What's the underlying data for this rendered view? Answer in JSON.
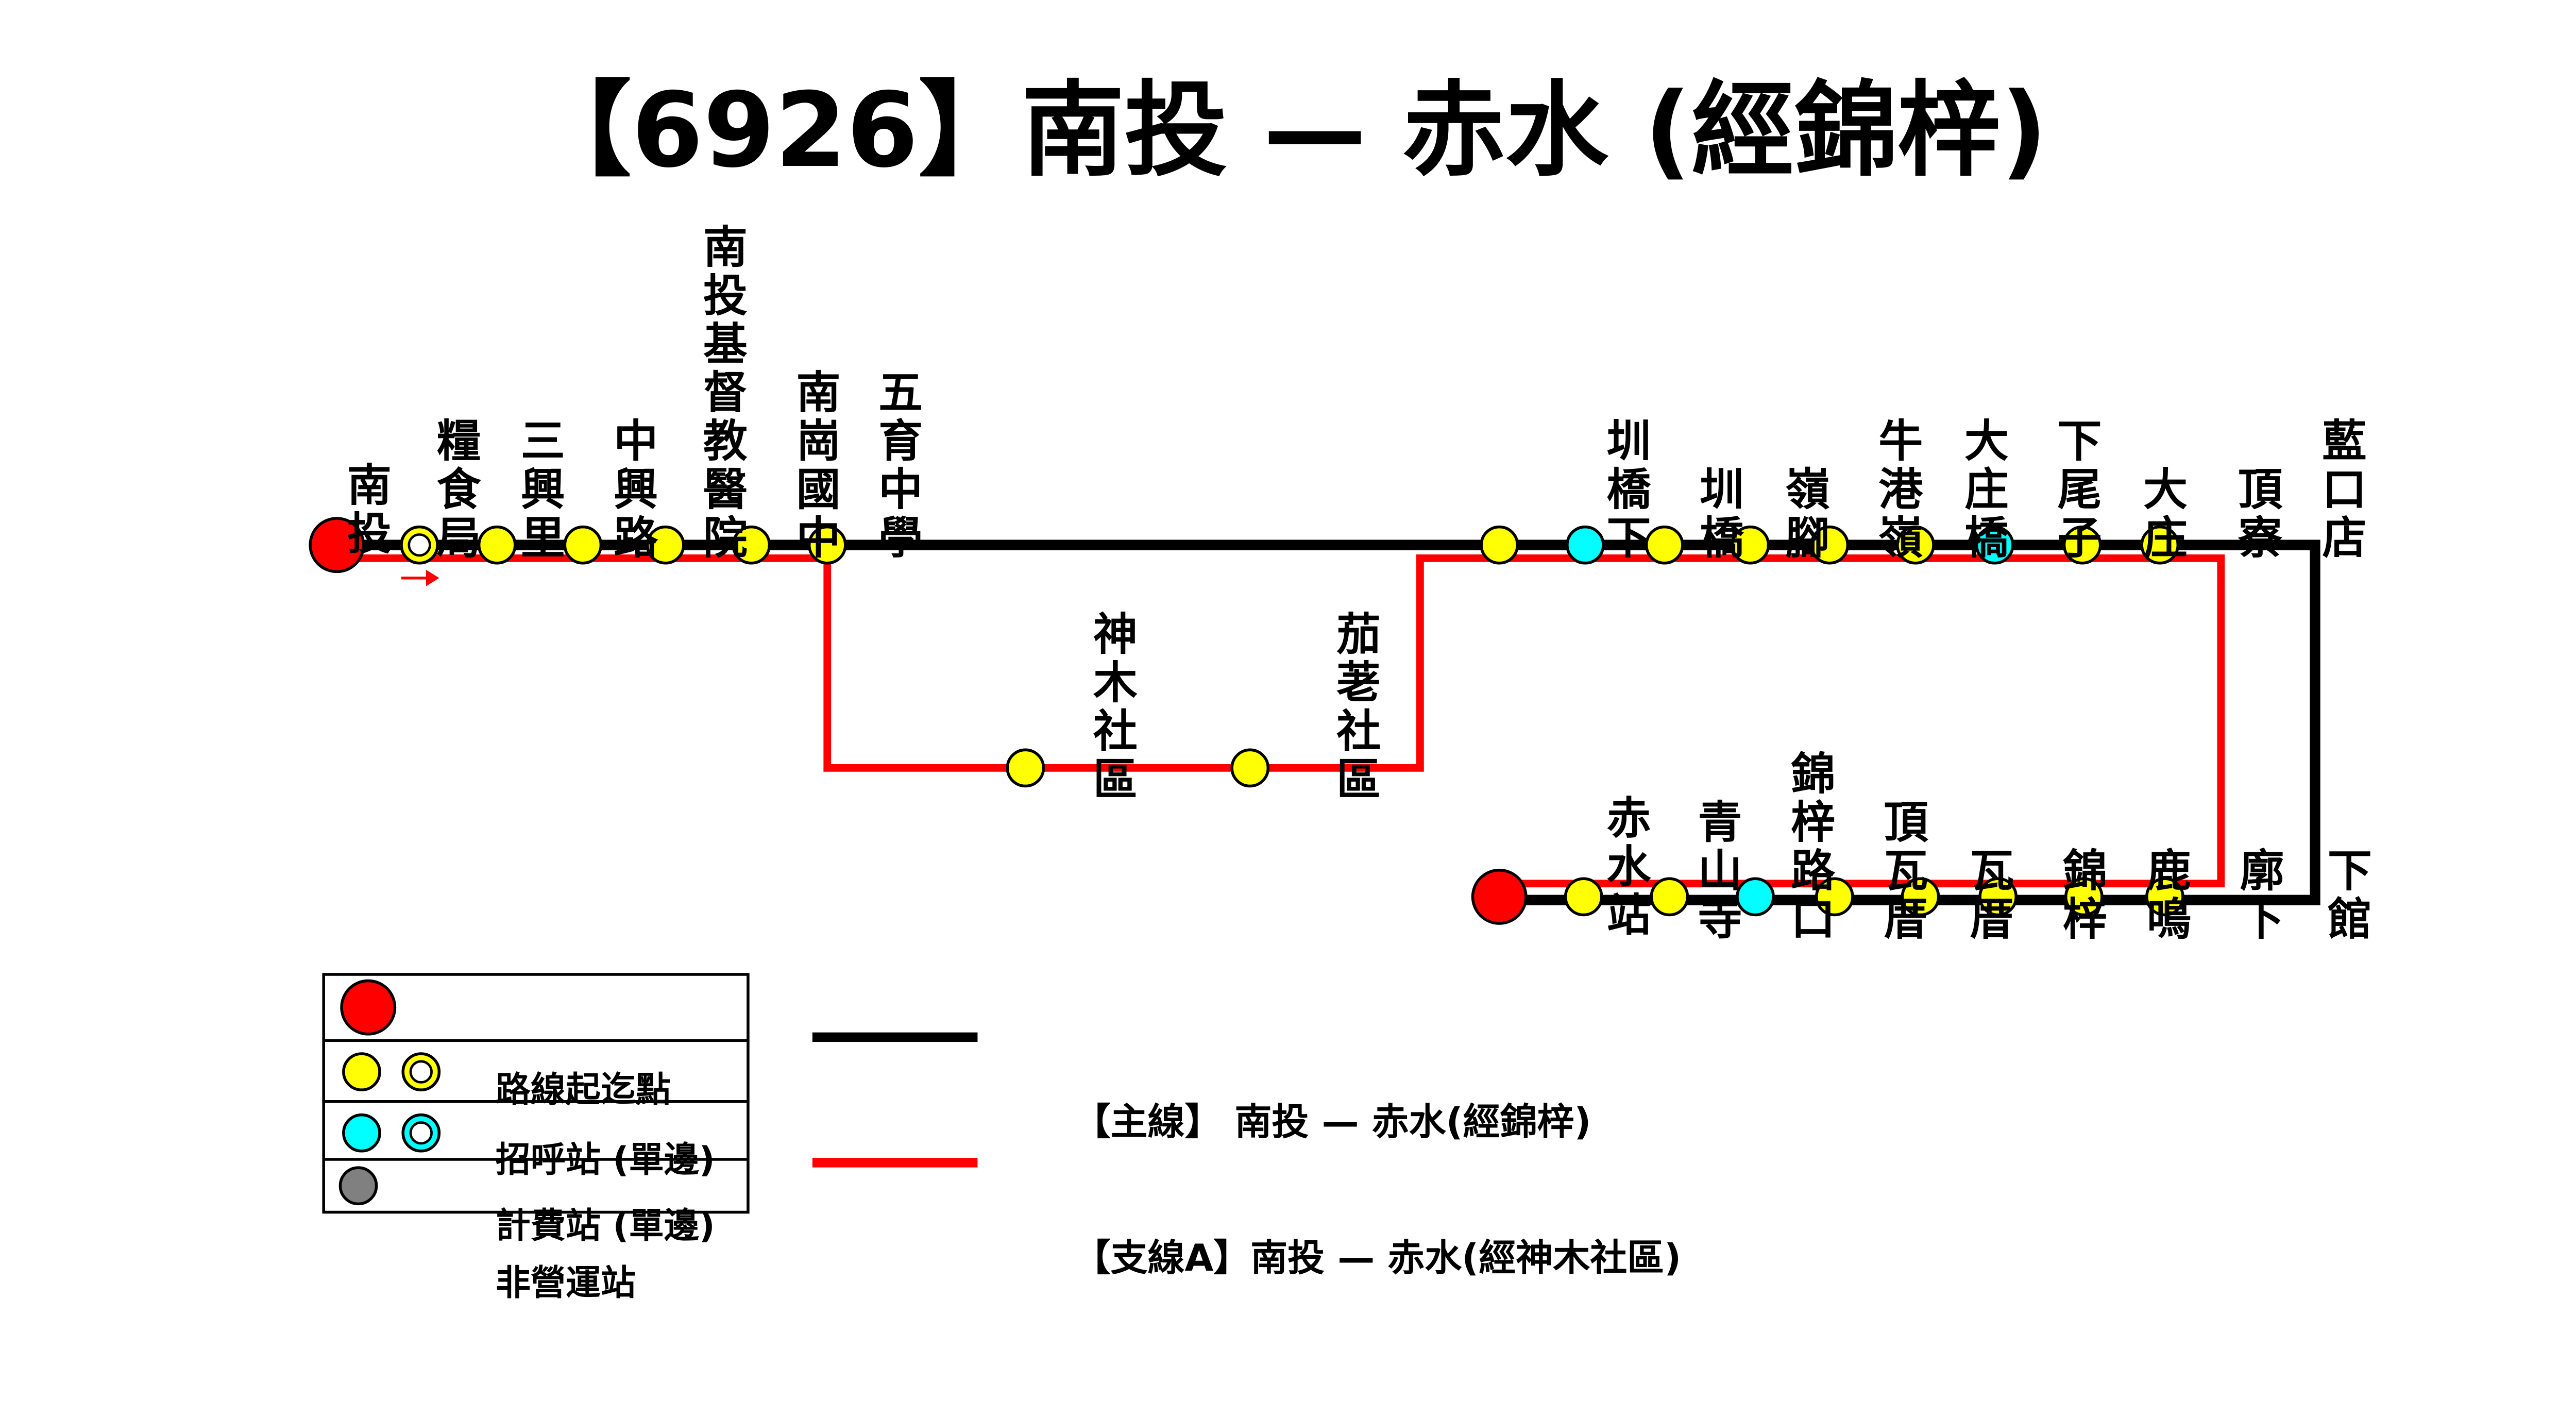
{
  "title": "【6926】南投 — 赤水 (經錦梓)",
  "colors": {
    "main_line": "#000000",
    "branch_line": "#ff0000",
    "terminal": "#ff0000",
    "stop": "#ffff00",
    "fare_stop": "#00ffff",
    "inactive": "#808080"
  },
  "stations_west": [
    {
      "name": "南投",
      "type": "terminal"
    },
    {
      "name": "糧食局",
      "type": "stop-single"
    },
    {
      "name": "三興里",
      "type": "stop"
    },
    {
      "name": "中興路",
      "type": "stop"
    },
    {
      "name": "南投基督教醫院",
      "type": "stop"
    },
    {
      "name": "南崗國中",
      "type": "stop"
    },
    {
      "name": "五育中學",
      "type": "stop"
    }
  ],
  "stations_branch": [
    {
      "name": "神木社區",
      "type": "stop"
    },
    {
      "name": "茄荖社區",
      "type": "stop"
    }
  ],
  "stations_upper_east": [
    {
      "name": "圳橋下",
      "type": "stop"
    },
    {
      "name": "圳橋",
      "type": "fare"
    },
    {
      "name": "嶺腳",
      "type": "stop"
    },
    {
      "name": "牛港嶺",
      "type": "stop"
    },
    {
      "name": "大庄橋",
      "type": "stop"
    },
    {
      "name": "下尾子",
      "type": "stop"
    },
    {
      "name": "大庄",
      "type": "fare"
    },
    {
      "name": "頂寮",
      "type": "stop"
    },
    {
      "name": "藍口店",
      "type": "stop"
    }
  ],
  "stations_lower": [
    {
      "name": "赤水站",
      "type": "terminal"
    },
    {
      "name": "青山寺",
      "type": "stop"
    },
    {
      "name": "錦梓路口",
      "type": "stop"
    },
    {
      "name": "頂瓦厝",
      "type": "fare"
    },
    {
      "name": "瓦厝",
      "type": "stop"
    },
    {
      "name": "錦梓",
      "type": "stop"
    },
    {
      "name": "鹿鳴",
      "type": "stop"
    },
    {
      "name": "廓下",
      "type": "stop"
    },
    {
      "name": "下館",
      "type": "stop"
    }
  ],
  "direction_arrow": "arrow-right-icon",
  "legend": {
    "symbols": [
      {
        "label": "路線起迄點",
        "icons": [
          "terminal"
        ]
      },
      {
        "label": "招呼站 (單邊)",
        "icons": [
          "stop",
          "stop-single"
        ]
      },
      {
        "label": "計費站 (單邊)",
        "icons": [
          "fare",
          "fare-single"
        ]
      },
      {
        "label": "非營運站",
        "icons": [
          "inactive"
        ]
      }
    ],
    "lines": [
      {
        "label": "【主線】 南投 — 赤水(經錦梓)",
        "color": "#000000"
      },
      {
        "label": "【支線A】南投 — 赤水(經神木社區)",
        "color": "#ff0000"
      }
    ]
  }
}
